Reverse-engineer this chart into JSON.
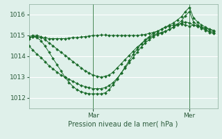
{
  "background_color": "#dff0ea",
  "grid_color": "#ffffff",
  "line_color": "#1a6b2a",
  "marker_color": "#1a6b2a",
  "xlabel": "Pression niveau de la mer( hPa )",
  "ylim": [
    1011.5,
    1016.5
  ],
  "yticks": [
    1012,
    1013,
    1014,
    1015,
    1016
  ],
  "xlim": [
    0,
    47
  ],
  "vlines_x": [
    16,
    40
  ],
  "vline_labels": [
    "Mar",
    "Mer"
  ],
  "series": [
    [
      1014.9,
      1014.95,
      1014.95,
      1014.9,
      1014.9,
      1014.85,
      1014.85,
      1014.85,
      1014.85,
      1014.85,
      1014.87,
      1014.9,
      1014.9,
      1014.92,
      1014.95,
      1014.97,
      1015.0,
      1015.0,
      1015.02,
      1015.02,
      1015.0,
      1015.0,
      1015.0,
      1015.0,
      1015.0,
      1015.0,
      1015.0,
      1015.0,
      1015.02,
      1015.05,
      1015.1,
      1015.15,
      1015.2,
      1015.3,
      1015.4,
      1015.45,
      1015.5,
      1015.55,
      1015.55,
      1015.5,
      1015.45,
      1015.5,
      1015.45,
      1015.4,
      1015.35,
      1015.3,
      1015.25
    ],
    [
      1014.95,
      1015.0,
      1015.0,
      1014.95,
      1014.8,
      1014.65,
      1014.5,
      1014.35,
      1014.2,
      1014.05,
      1013.9,
      1013.75,
      1013.6,
      1013.45,
      1013.3,
      1013.2,
      1013.1,
      1013.05,
      1013.0,
      1013.05,
      1013.1,
      1013.25,
      1013.45,
      1013.65,
      1013.85,
      1014.05,
      1014.25,
      1014.45,
      1014.6,
      1014.75,
      1014.9,
      1015.0,
      1015.1,
      1015.15,
      1015.2,
      1015.3,
      1015.4,
      1015.5,
      1015.6,
      1015.65,
      1015.6,
      1015.5,
      1015.45,
      1015.4,
      1015.3,
      1015.2,
      1015.15
    ],
    [
      1014.85,
      1014.95,
      1014.9,
      1014.75,
      1014.5,
      1014.2,
      1013.9,
      1013.6,
      1013.3,
      1013.0,
      1012.75,
      1012.55,
      1012.4,
      1012.3,
      1012.25,
      1012.2,
      1012.2,
      1012.2,
      1012.2,
      1012.25,
      1012.4,
      1012.65,
      1012.9,
      1013.2,
      1013.5,
      1013.8,
      1014.1,
      1014.35,
      1014.6,
      1014.8,
      1014.95,
      1015.1,
      1015.2,
      1015.3,
      1015.4,
      1015.5,
      1015.6,
      1015.75,
      1015.9,
      1016.15,
      1016.35,
      1015.85,
      1015.65,
      1015.5,
      1015.4,
      1015.3,
      1015.2
    ],
    [
      1014.5,
      1014.3,
      1014.1,
      1013.95,
      1013.75,
      1013.55,
      1013.4,
      1013.25,
      1013.1,
      1013.0,
      1012.9,
      1012.8,
      1012.7,
      1012.6,
      1012.55,
      1012.5,
      1012.45,
      1012.45,
      1012.45,
      1012.5,
      1012.6,
      1012.75,
      1012.95,
      1013.2,
      1013.45,
      1013.7,
      1013.95,
      1014.2,
      1014.45,
      1014.65,
      1014.8,
      1014.95,
      1015.05,
      1015.1,
      1015.2,
      1015.3,
      1015.4,
      1015.55,
      1015.7,
      1015.95,
      1016.15,
      1015.65,
      1015.5,
      1015.35,
      1015.25,
      1015.15,
      1015.1
    ]
  ],
  "figsize": [
    3.2,
    2.0
  ],
  "dpi": 100
}
